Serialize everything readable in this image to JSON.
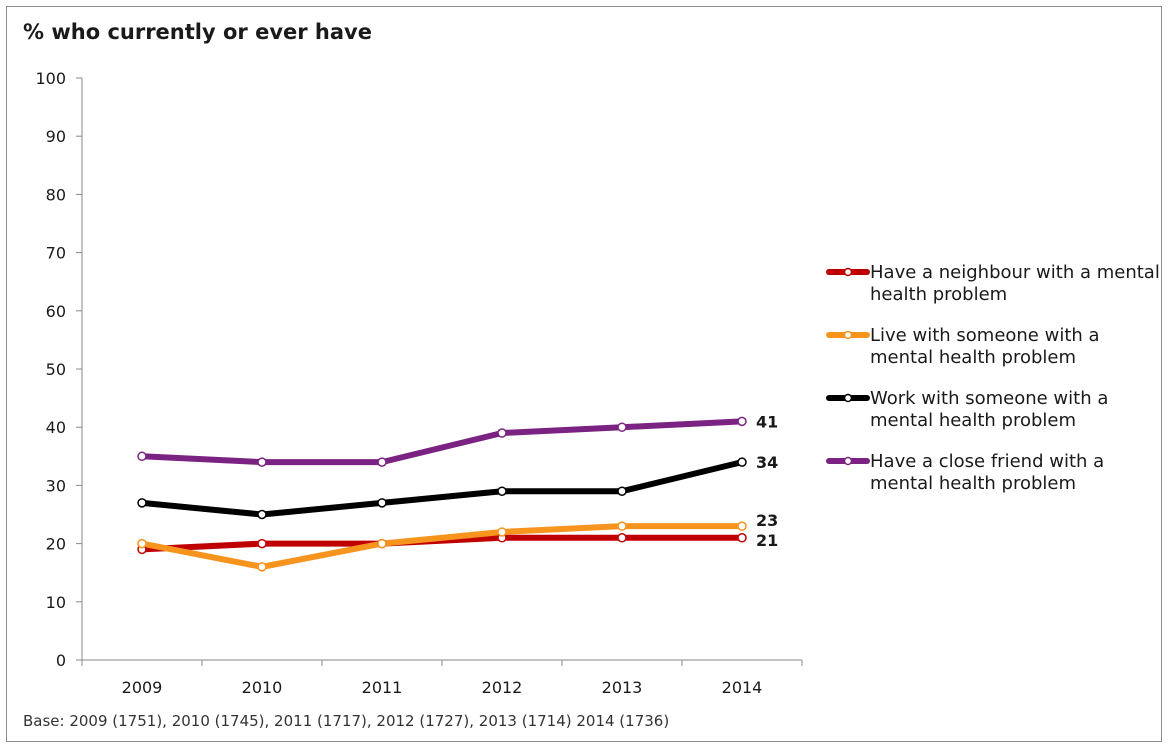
{
  "chart_data": {
    "type": "line",
    "title": "% who currently or ever have",
    "footnote": "Base: 2009 (1751), 2010 (1745), 2011 (1717), 2012 (1727), 2013 (1714) 2014 (1736)",
    "categories": [
      "2009",
      "2010",
      "2011",
      "2012",
      "2013",
      "2014"
    ],
    "ylim": [
      0,
      100
    ],
    "yticks": [
      "0",
      "10",
      "20",
      "30",
      "40",
      "50",
      "60",
      "70",
      "80",
      "90",
      "100"
    ],
    "grid": false,
    "legend_position": "right",
    "series": [
      {
        "name": "Have a neighbour with a mental health problem",
        "color": "#c00000",
        "values": [
          19,
          20,
          20,
          21,
          21,
          21
        ],
        "end_label": "21"
      },
      {
        "name": "Live with someone with a mental health problem",
        "color": "#f7941d",
        "values": [
          20,
          16,
          20,
          22,
          23,
          23
        ],
        "end_label": "23"
      },
      {
        "name": "Work with someone with a mental health problem",
        "color": "#000000",
        "values": [
          27,
          25,
          27,
          29,
          29,
          34
        ],
        "end_label": "34"
      },
      {
        "name": "Have a close friend with a mental health problem",
        "color": "#7b2382",
        "values": [
          35,
          34,
          34,
          39,
          40,
          41
        ],
        "end_label": "41"
      }
    ]
  }
}
